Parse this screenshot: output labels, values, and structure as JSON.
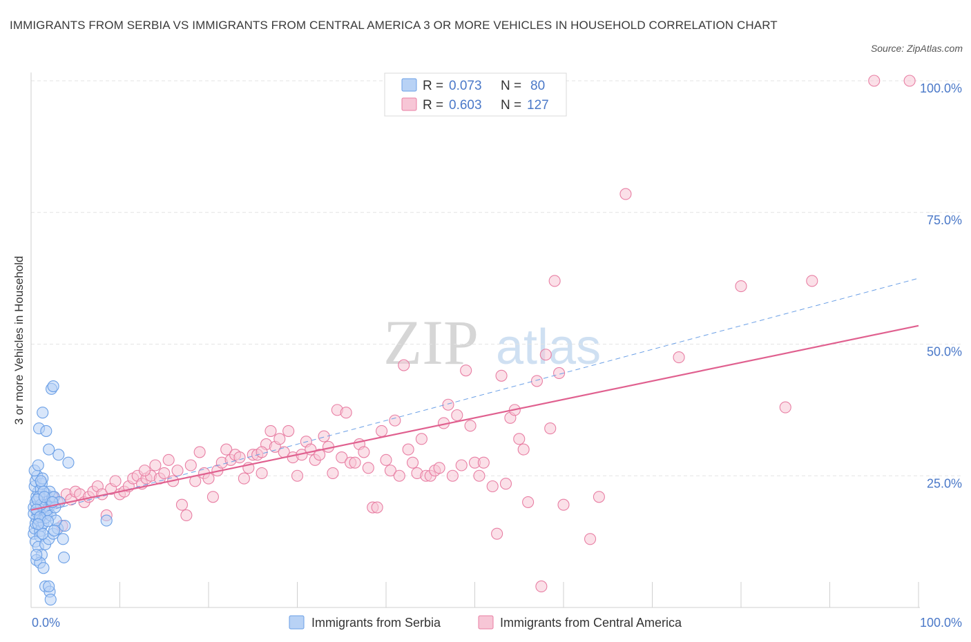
{
  "title": "IMMIGRANTS FROM SERBIA VS IMMIGRANTS FROM CENTRAL AMERICA 3 OR MORE VEHICLES IN HOUSEHOLD CORRELATION CHART",
  "source": "Source: ZipAtlas.com",
  "watermark": {
    "zip": "ZIP",
    "atlas": "atlas"
  },
  "colors": {
    "serbia": "#6a9fe6",
    "serbia_fill": "#b8d2f5",
    "central_america": "#e87ea3",
    "central_america_fill": "#f7c6d6",
    "trend_pink": "#e0608f",
    "trend_blue": "#6a9fe6",
    "tick_text": "#4a78c8",
    "grid": "#e3e3e3"
  },
  "legend": {
    "rows": [
      {
        "r_label": "R = ",
        "r_value": "0.073",
        "n_label": "N = ",
        "n_value": "80"
      },
      {
        "r_label": "R = ",
        "r_value": "0.603",
        "n_label": "N = ",
        "n_value": "127"
      }
    ]
  },
  "chart_data": {
    "type": "scatter",
    "title": "IMMIGRANTS FROM SERBIA VS IMMIGRANTS FROM CENTRAL AMERICA 3 OR MORE VEHICLES IN HOUSEHOLD CORRELATION CHART",
    "xlabel": "",
    "ylabel": "3 or more Vehicles in Household",
    "xlim": [
      0,
      100
    ],
    "ylim": [
      0,
      100
    ],
    "x_ticks": [
      "0.0%",
      "100.0%"
    ],
    "y_ticks": [
      "25.0%",
      "50.0%",
      "75.0%",
      "100.0%"
    ],
    "y_tick_values": [
      25,
      50,
      75,
      100
    ],
    "grid": true,
    "legend_position": "top-center",
    "series": [
      {
        "name": "Immigrants from Serbia",
        "R": 0.073,
        "N": 80,
        "trend": {
          "x0": 0,
          "y0": 17.5,
          "x1": 100,
          "y1": 62.5,
          "style": "dashed"
        },
        "points": [
          [
            0.3,
            14
          ],
          [
            0.4,
            15
          ],
          [
            0.5,
            16
          ],
          [
            0.6,
            17
          ],
          [
            0.7,
            18
          ],
          [
            0.3,
            19
          ],
          [
            0.5,
            20
          ],
          [
            0.6,
            21
          ],
          [
            0.8,
            22
          ],
          [
            0.4,
            23
          ],
          [
            0.5,
            24
          ],
          [
            0.7,
            25
          ],
          [
            1.0,
            14.5
          ],
          [
            1.2,
            15.5
          ],
          [
            1.3,
            17.5
          ],
          [
            1.4,
            18.5
          ],
          [
            1.5,
            19.5
          ],
          [
            1.6,
            20.5
          ],
          [
            1.7,
            21.5
          ],
          [
            1.1,
            22.5
          ],
          [
            1.2,
            23.5
          ],
          [
            1.3,
            24.5
          ],
          [
            0.9,
            16.5
          ],
          [
            1.0,
            13.5
          ],
          [
            1.4,
            16
          ],
          [
            1.6,
            17
          ],
          [
            1.8,
            18
          ],
          [
            2.0,
            19
          ],
          [
            2.2,
            20
          ],
          [
            2.4,
            21
          ],
          [
            0.5,
            12.5
          ],
          [
            0.8,
            11.5
          ],
          [
            1.2,
            10
          ],
          [
            0.6,
            9
          ],
          [
            1.0,
            8.5
          ],
          [
            1.4,
            7.5
          ],
          [
            1.6,
            12
          ],
          [
            2.0,
            13
          ],
          [
            2.5,
            14
          ],
          [
            3.0,
            15
          ],
          [
            0.4,
            26
          ],
          [
            0.8,
            27
          ],
          [
            1.1,
            24
          ],
          [
            2.1,
            22
          ],
          [
            2.6,
            21
          ],
          [
            3.2,
            20
          ],
          [
            3.6,
            13
          ],
          [
            3.8,
            15.5
          ],
          [
            2.2,
            17.5
          ],
          [
            2.8,
            16.5
          ],
          [
            0.9,
            34
          ],
          [
            1.3,
            37
          ],
          [
            2.0,
            30
          ],
          [
            3.1,
            29
          ],
          [
            4.2,
            27.5
          ],
          [
            2.3,
            41.5
          ],
          [
            2.5,
            42
          ],
          [
            1.7,
            33.5
          ],
          [
            8.5,
            16.5
          ],
          [
            3.7,
            9.5
          ],
          [
            1.6,
            4
          ],
          [
            2.1,
            3
          ],
          [
            2.2,
            1.5
          ],
          [
            2.0,
            4
          ],
          [
            0.6,
            10
          ],
          [
            0.9,
            21
          ],
          [
            1.4,
            22
          ],
          [
            1.8,
            18.5
          ],
          [
            2.7,
            19
          ],
          [
            1.1,
            19.5
          ],
          [
            0.7,
            20.5
          ],
          [
            1.5,
            21
          ],
          [
            2.4,
            20
          ],
          [
            0.3,
            17.8
          ],
          [
            0.6,
            18.6
          ],
          [
            1.0,
            17.2
          ],
          [
            1.9,
            16.4
          ],
          [
            2.6,
            14.6
          ],
          [
            1.3,
            14
          ],
          [
            0.8,
            15.8
          ]
        ]
      },
      {
        "name": "Immigrants from Central America",
        "R": 0.603,
        "N": 127,
        "trend": {
          "x0": 0,
          "y0": 18.5,
          "x1": 100,
          "y1": 53.5,
          "style": "solid"
        },
        "points": [
          [
            1.5,
            19
          ],
          [
            2.0,
            20.5
          ],
          [
            2.5,
            21
          ],
          [
            3.0,
            20
          ],
          [
            3.5,
            15.5
          ],
          [
            4.0,
            21.5
          ],
          [
            4.5,
            20.5
          ],
          [
            5.0,
            22
          ],
          [
            5.5,
            21.5
          ],
          [
            6.0,
            20
          ],
          [
            6.5,
            21
          ],
          [
            7.0,
            22
          ],
          [
            7.5,
            23
          ],
          [
            8.0,
            21.5
          ],
          [
            8.5,
            17.5
          ],
          [
            9.0,
            22.5
          ],
          [
            9.5,
            24
          ],
          [
            10.0,
            21.5
          ],
          [
            10.5,
            22
          ],
          [
            11.0,
            23
          ],
          [
            11.5,
            24.5
          ],
          [
            12.0,
            25
          ],
          [
            12.5,
            23.5
          ],
          [
            13.0,
            24.5
          ],
          [
            13.5,
            25
          ],
          [
            14.0,
            27
          ],
          [
            14.5,
            24.5
          ],
          [
            15.0,
            25.5
          ],
          [
            15.5,
            28
          ],
          [
            16.0,
            24
          ],
          [
            16.5,
            26
          ],
          [
            17.0,
            19.5
          ],
          [
            17.5,
            17.5
          ],
          [
            18.0,
            27
          ],
          [
            18.5,
            24
          ],
          [
            19.0,
            29.5
          ],
          [
            19.5,
            25.5
          ],
          [
            20.0,
            24.5
          ],
          [
            20.5,
            21
          ],
          [
            21.0,
            26
          ],
          [
            21.5,
            27.5
          ],
          [
            22.0,
            30
          ],
          [
            22.5,
            28
          ],
          [
            23.0,
            29
          ],
          [
            23.5,
            28.5
          ],
          [
            24.0,
            24.5
          ],
          [
            24.5,
            26.5
          ],
          [
            25.0,
            29
          ],
          [
            25.5,
            29
          ],
          [
            26.0,
            25.5
          ],
          [
            26.5,
            31
          ],
          [
            27.0,
            33.5
          ],
          [
            27.5,
            30.5
          ],
          [
            28.0,
            32
          ],
          [
            28.5,
            29.5
          ],
          [
            29.0,
            33.5
          ],
          [
            29.5,
            28.5
          ],
          [
            30.0,
            25
          ],
          [
            30.5,
            29
          ],
          [
            31.0,
            31.5
          ],
          [
            31.5,
            30
          ],
          [
            32.0,
            28
          ],
          [
            32.5,
            29
          ],
          [
            33.0,
            32.5
          ],
          [
            34.0,
            25.5
          ],
          [
            34.5,
            37.5
          ],
          [
            35.0,
            28.5
          ],
          [
            35.5,
            37
          ],
          [
            36.0,
            27.5
          ],
          [
            36.5,
            27.5
          ],
          [
            37.0,
            31
          ],
          [
            37.5,
            29.5
          ],
          [
            38.0,
            26.5
          ],
          [
            38.5,
            19
          ],
          [
            39.0,
            19
          ],
          [
            39.5,
            33.5
          ],
          [
            40.0,
            28
          ],
          [
            40.5,
            26
          ],
          [
            41.0,
            35.5
          ],
          [
            41.5,
            25
          ],
          [
            42.0,
            46
          ],
          [
            42.5,
            30
          ],
          [
            43.0,
            27.5
          ],
          [
            43.5,
            25.5
          ],
          [
            44.0,
            32
          ],
          [
            44.5,
            25
          ],
          [
            45.0,
            25
          ],
          [
            45.5,
            26
          ],
          [
            46.0,
            26.5
          ],
          [
            46.5,
            35
          ],
          [
            47.0,
            38.5
          ],
          [
            47.5,
            25
          ],
          [
            48.0,
            36.5
          ],
          [
            48.5,
            27
          ],
          [
            49.0,
            45
          ],
          [
            49.5,
            34.5
          ],
          [
            50.0,
            27.5
          ],
          [
            50.5,
            25
          ],
          [
            51.0,
            27.5
          ],
          [
            52.0,
            23
          ],
          [
            52.5,
            14
          ],
          [
            53.0,
            44
          ],
          [
            53.5,
            23.5
          ],
          [
            54.0,
            36
          ],
          [
            54.5,
            37.5
          ],
          [
            55.0,
            32
          ],
          [
            55.5,
            30
          ],
          [
            56.0,
            20
          ],
          [
            57.0,
            43
          ],
          [
            57.5,
            4
          ],
          [
            58.0,
            48
          ],
          [
            58.5,
            34
          ],
          [
            59.0,
            62
          ],
          [
            59.5,
            44.5
          ],
          [
            60.0,
            19.5
          ],
          [
            63.0,
            13
          ],
          [
            64.0,
            21
          ],
          [
            67.0,
            78.5
          ],
          [
            73.0,
            47.5
          ],
          [
            80.0,
            61
          ],
          [
            85.0,
            38
          ],
          [
            88.0,
            62
          ],
          [
            95.0,
            100
          ],
          [
            99.0,
            100
          ],
          [
            26.0,
            29.5
          ],
          [
            33.5,
            30.5
          ],
          [
            12.8,
            26
          ]
        ]
      }
    ]
  },
  "bottom_legend": {
    "serbia_label": "Immigrants from Serbia",
    "central_america_label": "Immigrants from Central America"
  }
}
